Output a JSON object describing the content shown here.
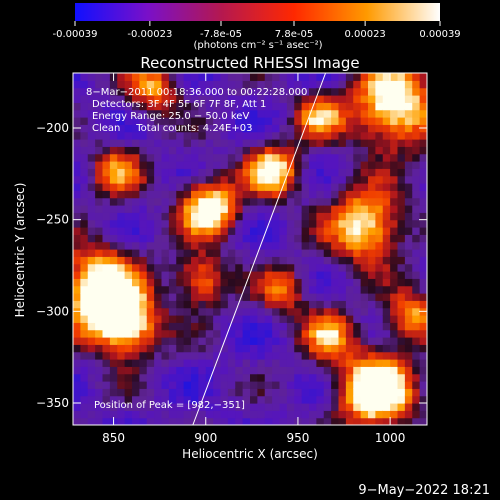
{
  "colorbar": {
    "ticks": [
      "-0.00039",
      "-0.00023",
      "-7.8e-05",
      "7.8e-05",
      "0.00023",
      "0.00039"
    ],
    "tick_values": [
      -0.00039,
      -0.00023,
      -7.8e-05,
      7.8e-05,
      0.00023,
      0.00039
    ],
    "range": [
      -0.00039,
      0.00039
    ],
    "units": "(photons cm⁻² s⁻¹ asec⁻²)",
    "colors": [
      "#1010ff",
      "#7a10c8",
      "#b41850",
      "#ff2800",
      "#ff9a00",
      "#ffffff"
    ]
  },
  "chart_data": {
    "type": "heatmap",
    "title": "Reconstructed RHESSI Image",
    "xlabel": "Heliocentric X (arcsec)",
    "ylabel": "Heliocentric Y (arcsec)",
    "xlim": [
      828,
      1020
    ],
    "ylim": [
      -362,
      -170
    ],
    "xticks": [
      850,
      900,
      950,
      1000
    ],
    "yticks": [
      -350,
      -300,
      -250,
      -200
    ],
    "ytick_labels": [
      "−350",
      "−300",
      "−250",
      "−200"
    ],
    "annotations": [
      "8−Mar−2011 00:18:36.000 to 00:22:28.000",
      "Detectors: 3F 4F 5F 6F 7F 8F, Att 1",
      "Energy Range: 25.0 − 50.0 keV",
      "Clean     Total counts: 4.24E+03"
    ],
    "peak_label": "Position of Peak = [982,−351]",
    "peak": [
      982,
      -351
    ],
    "limb_line": [
      [
        893,
        -362
      ],
      [
        965,
        -170
      ]
    ],
    "hotspots": [
      {
        "x": 990,
        "y": -345,
        "amp": 1.0,
        "r": 14
      },
      {
        "x": 840,
        "y": -290,
        "amp": 0.9,
        "r": 16
      },
      {
        "x": 855,
        "y": -310,
        "amp": 0.8,
        "r": 12
      },
      {
        "x": 900,
        "y": -245,
        "amp": 0.85,
        "r": 11
      },
      {
        "x": 935,
        "y": -225,
        "amp": 0.75,
        "r": 10
      },
      {
        "x": 1000,
        "y": -190,
        "amp": 0.85,
        "r": 16
      },
      {
        "x": 985,
        "y": -255,
        "amp": 0.8,
        "r": 14
      },
      {
        "x": 895,
        "y": -285,
        "amp": 0.6,
        "r": 10
      },
      {
        "x": 965,
        "y": -315,
        "amp": 0.55,
        "r": 10
      },
      {
        "x": 1010,
        "y": -305,
        "amp": 0.6,
        "r": 10
      },
      {
        "x": 870,
        "y": -180,
        "amp": 0.55,
        "r": 10
      },
      {
        "x": 940,
        "y": -290,
        "amp": 0.5,
        "r": 9
      },
      {
        "x": 850,
        "y": -225,
        "amp": 0.5,
        "r": 10
      },
      {
        "x": 960,
        "y": -195,
        "amp": 0.55,
        "r": 9
      }
    ]
  },
  "footer": {
    "date": "9−May−2022 18:21"
  }
}
